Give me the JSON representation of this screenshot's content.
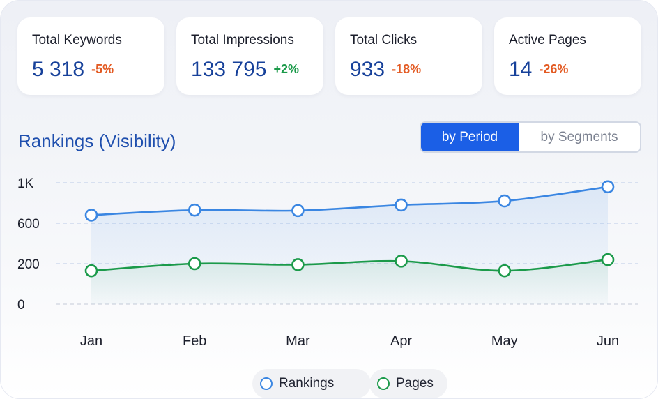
{
  "stats": [
    {
      "label": "Total Keywords",
      "value": "5 318",
      "delta": "-5%",
      "trend": "negative"
    },
    {
      "label": "Total Impressions",
      "value": "133 795",
      "delta": "+2%",
      "trend": "positive"
    },
    {
      "label": "Total Clicks",
      "value": "933",
      "delta": "-18%",
      "trend": "negative"
    },
    {
      "label": "Active Pages",
      "value": "14",
      "delta": "-26%",
      "trend": "negative"
    }
  ],
  "colors": {
    "accent": "#1b5fe6",
    "title": "#1f4fae",
    "negative": "#e35a22",
    "positive": "#1b9a4a",
    "rankings_line": "#3a86e2",
    "pages_line": "#1b9a4a"
  },
  "view_toggle": {
    "options": [
      "by Period",
      "by Segments"
    ],
    "selected": "by Period"
  },
  "chart_data": {
    "type": "line",
    "title": "Rankings (Visibility)",
    "categories": [
      "Jan",
      "Feb",
      "Mar",
      "Apr",
      "May",
      "Jun"
    ],
    "y_ticks": [
      "0",
      "200",
      "600",
      "1K"
    ],
    "y_tick_values": [
      0,
      200,
      600,
      1000
    ],
    "series": [
      {
        "name": "Rankings",
        "color": "#3a86e2",
        "values": [
          680,
          730,
          725,
          780,
          820,
          960
        ]
      },
      {
        "name": "Pages",
        "color": "#1b9a4a",
        "values": [
          165,
          200,
          195,
          225,
          165,
          240
        ]
      }
    ],
    "grid": "horizontal dashed",
    "legend_position": "bottom-center"
  }
}
